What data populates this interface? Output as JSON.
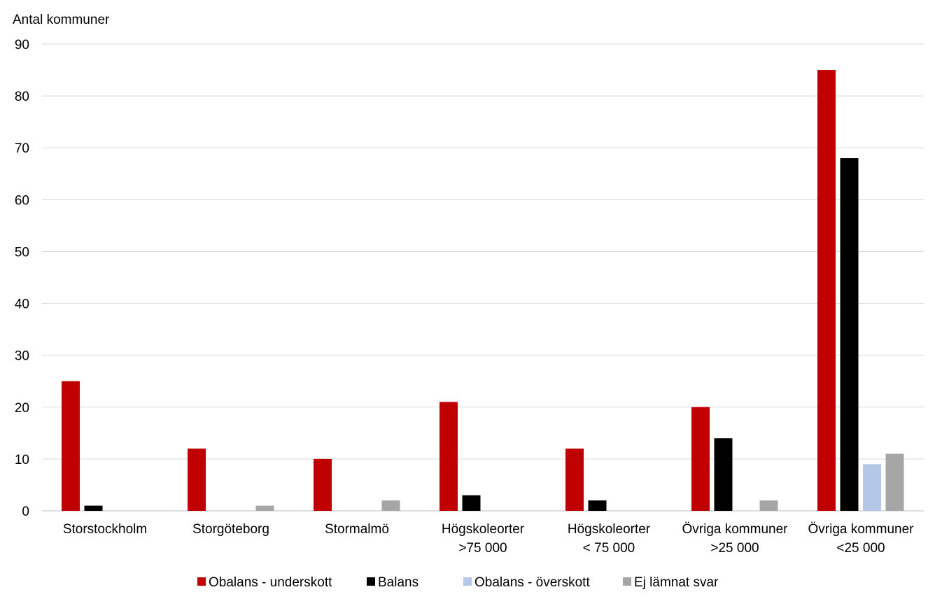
{
  "chart_data": {
    "type": "bar",
    "title": "",
    "xlabel": "",
    "ylabel": "Antal kommuner",
    "ylim": [
      0,
      90
    ],
    "yticks": [
      0,
      10,
      20,
      30,
      40,
      50,
      60,
      70,
      80,
      90
    ],
    "grid": true,
    "legend_position": "bottom",
    "categories": [
      [
        "Storstockholm"
      ],
      [
        "Storgöteborg"
      ],
      [
        "Stormalmö"
      ],
      [
        "Högskoleorter",
        ">75 000"
      ],
      [
        "Högskoleorter",
        "< 75 000"
      ],
      [
        "Övriga kommuner",
        ">25 000"
      ],
      [
        "Övriga kommuner",
        "<25 000"
      ]
    ],
    "series": [
      {
        "name": "Obalans - underskott",
        "color": "#c00000",
        "values": [
          25,
          12,
          10,
          21,
          12,
          20,
          85
        ]
      },
      {
        "name": "Balans",
        "color": "#000000",
        "values": [
          1,
          0,
          0,
          3,
          2,
          14,
          68
        ]
      },
      {
        "name": "Obalans - överskott",
        "color": "#b4c7e7",
        "values": [
          0,
          0,
          0,
          0,
          0,
          0,
          9
        ]
      },
      {
        "name": "Ej lämnat svar",
        "color": "#a6a6a6",
        "values": [
          0,
          1,
          2,
          0,
          0,
          2,
          11
        ]
      }
    ]
  }
}
